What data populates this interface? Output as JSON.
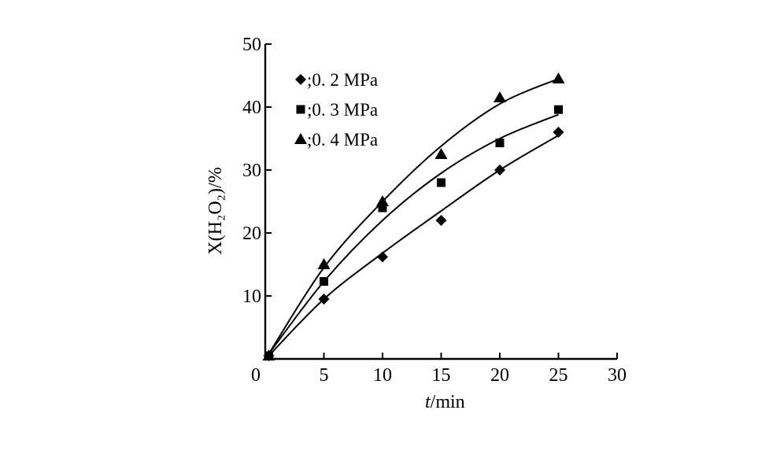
{
  "chart_data": {
    "type": "scatter",
    "xlabel_italic": "t",
    "xlabel_rest": "/min",
    "ylabel": "X(H₂O₂)/%",
    "xlim": [
      0,
      30
    ],
    "ylim": [
      0,
      50
    ],
    "x_ticks": [
      "0",
      "5",
      "10",
      "15",
      "20",
      "25",
      "30"
    ],
    "y_ticks": [
      "10",
      "20",
      "30",
      "40",
      "50"
    ],
    "grid": false,
    "legend_position": "top-left",
    "series": [
      {
        "name": ";0. 2 MPa",
        "marker": "diamond",
        "x": [
          0.3,
          5,
          10,
          15,
          20,
          25
        ],
        "y": [
          0.5,
          9.5,
          16.2,
          22,
          30,
          36
        ],
        "curve_x": [
          0.3,
          5,
          10,
          15,
          20,
          25
        ],
        "curve_y": [
          0.5,
          9.5,
          16.8,
          23.5,
          30,
          35.5
        ]
      },
      {
        "name": ";0. 3 MPa",
        "marker": "square",
        "x": [
          0.3,
          5,
          10,
          15,
          20,
          25
        ],
        "y": [
          0.5,
          12.3,
          24,
          28,
          34.3,
          39.6
        ],
        "curve_x": [
          0.3,
          5,
          10,
          15,
          20,
          25
        ],
        "curve_y": [
          0.8,
          12.3,
          22,
          29.5,
          35,
          38.8
        ]
      },
      {
        "name": ";0. 4 MPa",
        "marker": "triangle",
        "x": [
          0.3,
          5,
          10,
          15,
          20,
          25
        ],
        "y": [
          0.5,
          15,
          25,
          32.5,
          41.5,
          44.5
        ],
        "curve_x": [
          0.3,
          5,
          10,
          15,
          20,
          25
        ],
        "curve_y": [
          0.8,
          14.5,
          25,
          33.8,
          40.5,
          44.5
        ]
      }
    ]
  }
}
